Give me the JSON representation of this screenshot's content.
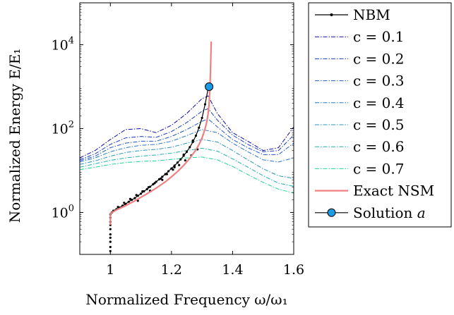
{
  "chart_data": {
    "type": "line",
    "xlabel": "Normalized Frequency ω/ω₁",
    "ylabel": "Normalized Energy E/E₁",
    "xlim": [
      0.9,
      1.6
    ],
    "ylim": [
      0.1,
      100000
    ],
    "yscale": "log",
    "grid": false,
    "legend_position": "outside-right",
    "x_ticks": [
      {
        "value": 1.0,
        "label": "1"
      },
      {
        "value": 1.2,
        "label": "1.2"
      },
      {
        "value": 1.4,
        "label": "1.4"
      },
      {
        "value": 1.6,
        "label": "1.6"
      }
    ],
    "y_ticks": [
      {
        "value": 1,
        "base": "10",
        "exp": "0"
      },
      {
        "value": 100,
        "base": "10",
        "exp": "2"
      },
      {
        "value": 10000,
        "base": "10",
        "exp": "4"
      }
    ],
    "series": [
      {
        "name": "NBM",
        "kind": "markers",
        "color": "#000000",
        "x": [
          1.0,
          1.0,
          1.0,
          1.0,
          1.0,
          1.0,
          1.0,
          1.0,
          1.0,
          1.0,
          1.005,
          1.01,
          1.02,
          1.03,
          1.04,
          1.05,
          1.06,
          1.07,
          1.08,
          1.09,
          1.1,
          1.11,
          1.12,
          1.13,
          1.14,
          1.15,
          1.16,
          1.17,
          1.18,
          1.19,
          1.2,
          1.21,
          1.22,
          1.23,
          1.24,
          1.25,
          1.26,
          1.27,
          1.28,
          1.29,
          1.3,
          1.31,
          1.32,
          1.025,
          1.045,
          1.065,
          1.085,
          1.105,
          1.125,
          1.145,
          1.165,
          1.185,
          1.205,
          1.225,
          1.245,
          1.265,
          1.285,
          1.09,
          1.13,
          1.17,
          1.21,
          1.24,
          1.27
        ],
        "y": [
          0.12,
          0.15,
          0.2,
          0.25,
          0.3,
          0.4,
          0.5,
          0.6,
          0.75,
          0.9,
          1.0,
          1.1,
          1.2,
          1.3,
          1.45,
          1.6,
          1.8,
          2.0,
          2.2,
          2.5,
          2.8,
          3.2,
          3.6,
          4.1,
          4.7,
          5.4,
          6.2,
          7.1,
          8.2,
          9.6,
          11.2,
          13.1,
          15.5,
          18.5,
          22.5,
          28.0,
          36.0,
          48.0,
          68.0,
          105.0,
          180.0,
          380.0,
          900.0,
          1.35,
          1.7,
          2.1,
          2.6,
          3.2,
          4.0,
          5.0,
          6.4,
          8.2,
          10.5,
          13.5,
          17.5,
          23.0,
          32.0,
          1.9,
          3.3,
          6.0,
          12.0,
          24.0,
          52.0
        ]
      },
      {
        "name": "c = 0.1",
        "kind": "dash-dot",
        "color": "#0a0aa8",
        "x": [
          0.9,
          0.95,
          1.0,
          1.05,
          1.1,
          1.15,
          1.2,
          1.25,
          1.3,
          1.32,
          1.35,
          1.4,
          1.45,
          1.5,
          1.55,
          1.6
        ],
        "y": [
          20,
          30,
          55,
          95,
          100,
          80,
          120,
          230,
          520,
          600,
          230,
          80,
          50,
          30,
          35,
          110
        ]
      },
      {
        "name": "c = 0.2",
        "kind": "dash-dot",
        "color": "#1c3cc0",
        "x": [
          0.9,
          0.95,
          1.0,
          1.05,
          1.1,
          1.15,
          1.2,
          1.25,
          1.3,
          1.32,
          1.35,
          1.4,
          1.45,
          1.5,
          1.55,
          1.6
        ],
        "y": [
          18,
          25,
          42,
          60,
          65,
          62,
          85,
          140,
          260,
          300,
          160,
          70,
          42,
          28,
          30,
          70
        ]
      },
      {
        "name": "c = 0.3",
        "kind": "dash-dot",
        "color": "#2458c8",
        "x": [
          0.9,
          0.95,
          1.0,
          1.05,
          1.1,
          1.15,
          1.2,
          1.25,
          1.3,
          1.32,
          1.35,
          1.4,
          1.45,
          1.5,
          1.55,
          1.6
        ],
        "y": [
          17,
          22,
          35,
          45,
          50,
          50,
          65,
          95,
          150,
          170,
          110,
          55,
          35,
          24,
          24,
          45
        ]
      },
      {
        "name": "c = 0.4",
        "kind": "dash-dot",
        "color": "#2a78c8",
        "x": [
          0.9,
          0.95,
          1.0,
          1.05,
          1.1,
          1.15,
          1.2,
          1.25,
          1.3,
          1.35,
          1.4,
          1.45,
          1.5,
          1.55,
          1.6
        ],
        "y": [
          16,
          20,
          28,
          35,
          40,
          42,
          50,
          68,
          95,
          80,
          45,
          28,
          18,
          16,
          20
        ]
      },
      {
        "name": "c = 0.5",
        "kind": "dash-dot",
        "color": "#2a94bc",
        "x": [
          0.9,
          0.95,
          1.0,
          1.05,
          1.1,
          1.15,
          1.2,
          1.25,
          1.3,
          1.35,
          1.4,
          1.45,
          1.5,
          1.55,
          1.6
        ],
        "y": [
          14,
          17,
          22,
          27,
          30,
          32,
          36,
          45,
          55,
          48,
          30,
          18,
          11,
          7.5,
          6.5
        ]
      },
      {
        "name": "c = 0.6",
        "kind": "dash-dot",
        "color": "#22b0a8",
        "x": [
          0.9,
          0.95,
          1.0,
          1.05,
          1.1,
          1.15,
          1.2,
          1.25,
          1.3,
          1.35,
          1.4,
          1.45,
          1.5,
          1.55,
          1.6
        ],
        "y": [
          12,
          14.5,
          17.5,
          20,
          22,
          23.5,
          26,
          30,
          34,
          29,
          19,
          12,
          7.5,
          5,
          4.2
        ]
      },
      {
        "name": "c = 0.7",
        "kind": "dash-dot",
        "color": "#1ad690",
        "x": [
          0.9,
          0.95,
          1.0,
          1.05,
          1.1,
          1.15,
          1.2,
          1.25,
          1.3,
          1.35,
          1.4,
          1.45,
          1.5,
          1.55,
          1.6
        ],
        "y": [
          10.5,
          12,
          14,
          15.5,
          16.5,
          17,
          18.5,
          20,
          21,
          18,
          12.5,
          8,
          5.2,
          3.6,
          2.9
        ]
      },
      {
        "name": "Exact NSM",
        "kind": "solid",
        "color": "#f08080",
        "x": [
          1.0,
          1.0,
          1.02,
          1.05,
          1.08,
          1.1,
          1.13,
          1.15,
          1.18,
          1.2,
          1.22,
          1.24,
          1.26,
          1.28,
          1.29,
          1.3,
          1.31,
          1.315,
          1.32,
          1.323,
          1.326,
          1.328,
          1.33
        ],
        "y": [
          0.5,
          0.95,
          1.15,
          1.45,
          1.9,
          2.3,
          3.1,
          3.8,
          5.4,
          7.1,
          9.5,
          13.3,
          19.6,
          31.3,
          41.8,
          60,
          100,
          140,
          230,
          380,
          1000,
          3000,
          12000
        ]
      },
      {
        "name": "Solution a",
        "kind": "point",
        "color": "#1a9be6",
        "x": [
          1.323
        ],
        "y": [
          1000
        ]
      }
    ]
  }
}
